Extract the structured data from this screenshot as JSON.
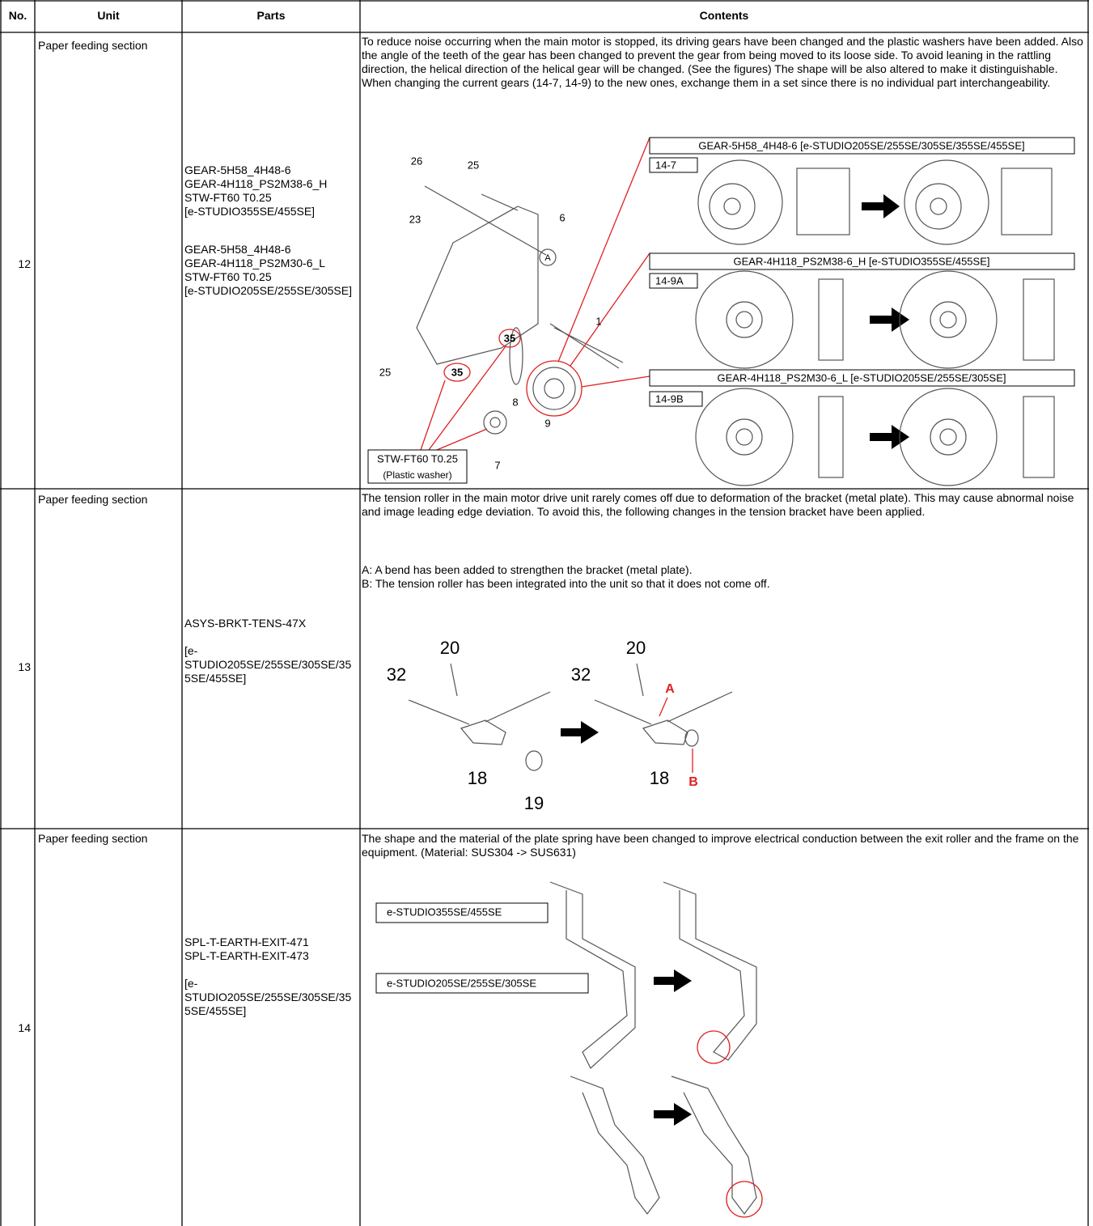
{
  "table": {
    "headers": [
      "No.",
      "Unit",
      "Parts",
      "Contents"
    ],
    "rows": [
      {
        "no": "12",
        "unit": "Paper feeding section",
        "parts": [
          [
            "GEAR-5H58_4H48-6",
            "GEAR-4H118_PS2M38-6_H",
            "STW-FT60 T0.25",
            "[e-STUDIO355SE/455SE]"
          ],
          [
            "GEAR-5H58_4H48-6",
            "GEAR-4H118_PS2M30-6_L",
            "STW-FT60 T0.25",
            "[e-STUDIO205SE/255SE/305SE]"
          ]
        ],
        "contents": [
          "To reduce noise occurring when the main motor is stopped, its driving gears have been changed and the plastic washers have been added. Also the angle of the teeth of the gear has been changed to prevent the gear from being moved to its loose side. To avoid leaning in the rattling direction, the helical direction of the helical gear will be changed. (See the figures) The shape will be also altered to make it distinguishable.",
          "When changing the current gears (14-7, 14-9) to the new ones, exchange them in a set since there is no individual part interchangeability."
        ],
        "figure": {
          "callouts": [
            {
              "title": "GEAR-5H58_4H48-6 [e-STUDIO205SE/255SE/305SE/355SE/455SE]",
              "tag": "14-7"
            },
            {
              "title": "GEAR-4H118_PS2M38-6_H [e-STUDIO355SE/455SE]",
              "tag": "14-9A"
            },
            {
              "title": "GEAR-4H118_PS2M30-6_L [e-STUDIO205SE/255SE/305SE]",
              "tag": "14-9B"
            }
          ],
          "washer_label": [
            "STW-FT60 T0.25",
            "(Plastic washer)"
          ],
          "part_numbers": [
            "26",
            "25",
            "23",
            "6",
            "A",
            "35",
            "35",
            "1",
            "25",
            "8",
            "9",
            "7"
          ]
        }
      },
      {
        "no": "13",
        "unit": "Paper feeding section",
        "parts": [
          [
            "ASYS-BRKT-TENS-47X"
          ],
          [
            "[e-STUDIO205SE/255SE/305SE/355SE/455SE]"
          ]
        ],
        "contents": [
          "The tension roller in the main motor drive unit rarely comes off due to deformation of the bracket (metal plate). This may cause abnormal noise and image leading edge deviation. To avoid this, the following changes in the tension bracket have been applied.",
          "A: A bend has been added to strengthen the bracket (metal plate).",
          "B: The tension roller has been integrated into the unit so that it does not come off."
        ],
        "figure": {
          "before": [
            "20",
            "32",
            "18",
            "19"
          ],
          "after": [
            "20",
            "32",
            "A",
            "18",
            "B"
          ]
        }
      },
      {
        "no": "14",
        "unit": "Paper feeding section",
        "parts": [
          [
            "SPL-T-EARTH-EXIT-471",
            "SPL-T-EARTH-EXIT-473"
          ],
          [
            "[e-STUDIO205SE/255SE/305SE/355SE/455SE]"
          ]
        ],
        "contents": [
          "The shape and the material of the plate spring have been changed to improve electrical conduction between the exit roller and the frame on the equipment. (Material: SUS304 -> SUS631)"
        ],
        "figure": {
          "models": [
            "e-STUDIO205SE/255SE/305SE",
            "e-STUDIO355SE/455SE"
          ]
        }
      }
    ]
  }
}
